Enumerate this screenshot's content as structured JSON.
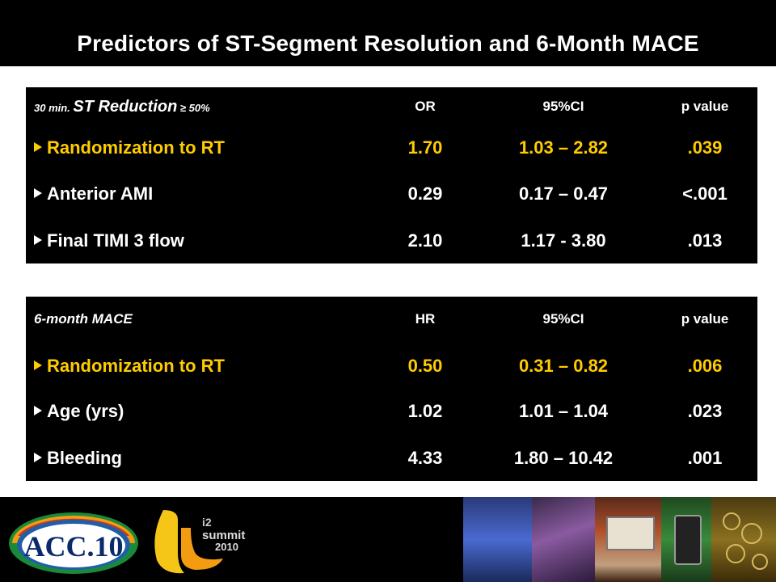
{
  "title": "Predictors of  ST-Segment Resolution and 6-Month MACE",
  "table1": {
    "header": {
      "prefix": "30 min. ",
      "main": "ST Reduction",
      "suffix": " ≥ 50%",
      "col_value": "OR",
      "col_ci": "95%CI",
      "col_p": "p value"
    },
    "rows": [
      {
        "label": "Randomization to RT",
        "value": "1.70",
        "ci": "1.03 – 2.82",
        "p": ".039",
        "highlight": true
      },
      {
        "label": "Anterior AMI",
        "value": "0.29",
        "ci": "0.17 – 0.47",
        "p": "<.001",
        "highlight": false
      },
      {
        "label": "Final TIMI 3 flow",
        "value": "2.10",
        "ci": "1.17 - 3.80",
        "p": ".013",
        "highlight": false
      }
    ]
  },
  "table2": {
    "header": {
      "label": "6-month MACE",
      "col_value": "HR",
      "col_ci": "95%CI",
      "col_p": "p value"
    },
    "rows": [
      {
        "label": "Randomization to  RT",
        "value": "0.50",
        "ci": "0.31 – 0.82",
        "p": ".006",
        "highlight": true
      },
      {
        "label": "Age (yrs)",
        "value": "1.02",
        "ci": "1.01 – 1.04",
        "p": ".023",
        "highlight": false
      },
      {
        "label": "Bleeding",
        "value": "4.33",
        "ci": "1.80 – 10.42",
        "p": ".001",
        "highlight": false
      }
    ]
  },
  "footer": {
    "logo_acc": "ACC.10",
    "logo_i2": "i2",
    "logo_summit": "summit",
    "logo_year": "2010"
  },
  "colors": {
    "highlight": "#ffcc00",
    "text": "#ffffff",
    "panel": "#000000"
  }
}
